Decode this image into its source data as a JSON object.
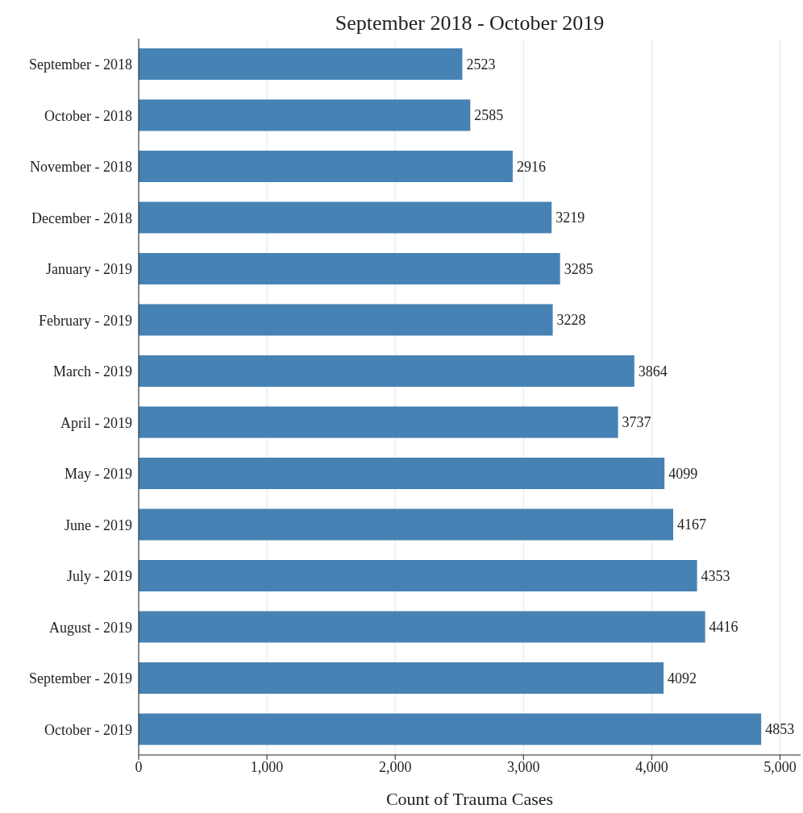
{
  "chart_data": {
    "type": "bar",
    "orientation": "horizontal",
    "title": "September 2018 - October 2019",
    "xlabel": "Count of Trauma Cases",
    "categories": [
      "September - 2018",
      "October - 2018",
      "November - 2018",
      "December - 2018",
      "January - 2019",
      "February - 2019",
      "March - 2019",
      "April - 2019",
      "May - 2019",
      "June - 2019",
      "July - 2019",
      "August - 2019",
      "September - 2019",
      "October - 2019"
    ],
    "values": [
      2523,
      2585,
      2916,
      3219,
      3285,
      3228,
      3864,
      3737,
      4099,
      4167,
      4353,
      4416,
      4092,
      4853
    ],
    "color": "#4682b4",
    "xlim": [
      0,
      5160
    ],
    "xticks": [
      0,
      {
        "value": 1000,
        "label": "1,000"
      },
      {
        "value": 2000,
        "label": "2,000"
      },
      {
        "value": 3000,
        "label": "3,000"
      },
      {
        "value": 4000,
        "label": "4,000"
      },
      {
        "value": 5000,
        "label": "5,000"
      }
    ],
    "grid": "x",
    "data_labels": true
  }
}
